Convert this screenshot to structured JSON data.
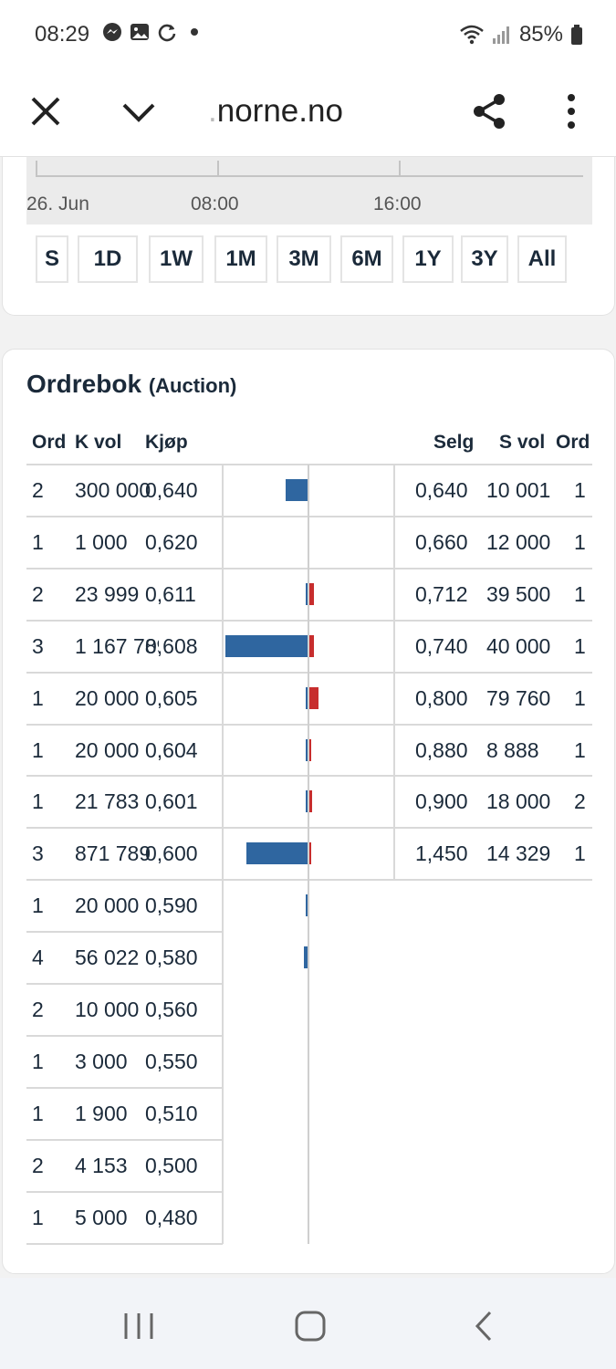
{
  "status": {
    "time": "08:29",
    "battery": "85%",
    "icons": [
      "messenger-icon",
      "gallery-icon",
      "sync-icon",
      "dot-icon",
      "wifi-icon",
      "signal-icon",
      "battery-icon"
    ]
  },
  "browser": {
    "url_fade": ".",
    "url": "norne.no",
    "icons": [
      "close-icon",
      "chevron-down-icon",
      "share-icon",
      "more-vertical-icon"
    ]
  },
  "chart": {
    "axis_labels": [
      "26. Jun",
      "08:00",
      "16:00"
    ],
    "ranges": [
      "S",
      "1D",
      "1W",
      "1M",
      "3M",
      "6M",
      "1Y",
      "3Y",
      "All"
    ]
  },
  "orderbook": {
    "title": "Ordrebok",
    "subtitle": "(Auction)",
    "headers": {
      "ord": "Ord",
      "k_vol": "K vol",
      "kjop": "Kjøp",
      "selg": "Selg",
      "s_vol": "S vol",
      "ord_s": "Ord"
    },
    "buy": [
      {
        "ord": "2",
        "vol": "300 000",
        "price": "0,640",
        "depth": 0.27
      },
      {
        "ord": "1",
        "vol": "1 000",
        "price": "0,620",
        "depth": 0.0
      },
      {
        "ord": "2",
        "vol": "23 999",
        "price": "0,611",
        "depth": 0.02
      },
      {
        "ord": "3",
        "vol": "1 167 789",
        "price": "0,608",
        "depth": 1.0
      },
      {
        "ord": "1",
        "vol": "20 000",
        "price": "0,605",
        "depth": 0.02
      },
      {
        "ord": "1",
        "vol": "20 000",
        "price": "0,604",
        "depth": 0.02
      },
      {
        "ord": "1",
        "vol": "21 783",
        "price": "0,601",
        "depth": 0.02
      },
      {
        "ord": "3",
        "vol": "871 789",
        "price": "0,600",
        "depth": 0.75
      },
      {
        "ord": "1",
        "vol": "20 000",
        "price": "0,590",
        "depth": 0.02
      },
      {
        "ord": "4",
        "vol": "56 022",
        "price": "0,580",
        "depth": 0.05
      },
      {
        "ord": "2",
        "vol": "10 000",
        "price": "0,560",
        "depth": 0.0
      },
      {
        "ord": "1",
        "vol": "3 000",
        "price": "0,550",
        "depth": 0.0
      },
      {
        "ord": "1",
        "vol": "1 900",
        "price": "0,510",
        "depth": 0.0
      },
      {
        "ord": "2",
        "vol": "4 153",
        "price": "0,500",
        "depth": 0.0
      },
      {
        "ord": "1",
        "vol": "5 000",
        "price": "0,480",
        "depth": 0.0
      }
    ],
    "sell": [
      {
        "price": "0,640",
        "vol": "10 001",
        "ord": "1",
        "depth": 0.0
      },
      {
        "price": "0,660",
        "vol": "12 000",
        "ord": "1",
        "depth": 0.0
      },
      {
        "price": "0,712",
        "vol": "39 500",
        "ord": "1",
        "depth": 0.5
      },
      {
        "price": "0,740",
        "vol": "40 000",
        "ord": "1",
        "depth": 0.5
      },
      {
        "price": "0,800",
        "vol": "79 760",
        "ord": "1",
        "depth": 1.0
      },
      {
        "price": "0,880",
        "vol": "8 888",
        "ord": "1",
        "depth": 0.1
      },
      {
        "price": "0,900",
        "vol": "18 000",
        "ord": "2",
        "depth": 0.25
      },
      {
        "price": "1,450",
        "vol": "14 329",
        "ord": "1",
        "depth": 0.2
      }
    ]
  },
  "nav": {
    "icons": [
      "recent-apps-icon",
      "home-icon",
      "back-icon"
    ]
  },
  "colors": {
    "buy_bar": "#2f66a0",
    "sell_bar": "#c72d2d",
    "text": "#1b2a3a"
  }
}
